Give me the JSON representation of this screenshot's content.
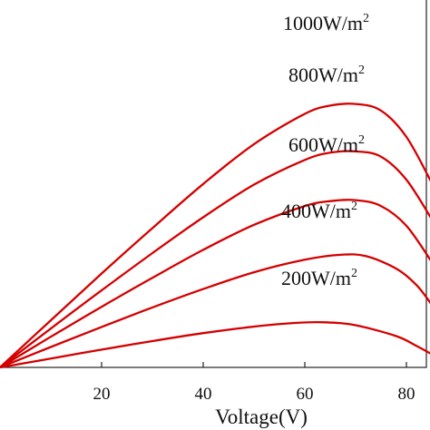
{
  "chart_data": {
    "type": "line",
    "title": "",
    "xlabel": "Voltage(V)",
    "ylabel": "",
    "xlim": [
      0,
      85
    ],
    "x_ticks": [
      20,
      40,
      60,
      80
    ],
    "grid": false,
    "legend": "none",
    "curve_color": "#d40000",
    "series": [
      {
        "label": "1000W/m",
        "exp": "2",
        "values": [
          [
            0,
            0
          ],
          [
            10,
            0.143
          ],
          [
            20,
            0.285
          ],
          [
            30,
            0.423
          ],
          [
            40,
            0.557
          ],
          [
            50,
            0.678
          ],
          [
            60,
            0.77
          ],
          [
            65,
            0.795
          ],
          [
            70,
            0.8
          ],
          [
            75,
            0.78
          ],
          [
            80,
            0.7
          ],
          [
            85,
            0.56
          ]
        ]
      },
      {
        "label": "800W/m",
        "exp": "2",
        "values": [
          [
            0,
            0
          ],
          [
            10,
            0.118
          ],
          [
            20,
            0.234
          ],
          [
            30,
            0.347
          ],
          [
            40,
            0.456
          ],
          [
            50,
            0.555
          ],
          [
            60,
            0.63
          ],
          [
            65,
            0.652
          ],
          [
            70,
            0.656
          ],
          [
            75,
            0.64
          ],
          [
            80,
            0.57
          ],
          [
            85,
            0.45
          ]
        ]
      },
      {
        "label": "600W/m",
        "exp": "2",
        "values": [
          [
            0,
            0
          ],
          [
            10,
            0.093
          ],
          [
            20,
            0.184
          ],
          [
            30,
            0.272
          ],
          [
            40,
            0.357
          ],
          [
            50,
            0.433
          ],
          [
            60,
            0.49
          ],
          [
            65,
            0.505
          ],
          [
            70,
            0.508
          ],
          [
            75,
            0.49
          ],
          [
            80,
            0.43
          ],
          [
            85,
            0.32
          ]
        ]
      },
      {
        "label": "400W/m",
        "exp": "2",
        "values": [
          [
            0,
            0
          ],
          [
            10,
            0.062
          ],
          [
            20,
            0.123
          ],
          [
            30,
            0.182
          ],
          [
            40,
            0.238
          ],
          [
            50,
            0.289
          ],
          [
            60,
            0.327
          ],
          [
            67,
            0.342
          ],
          [
            72,
            0.338
          ],
          [
            78,
            0.3
          ],
          [
            82,
            0.25
          ],
          [
            85,
            0.19
          ]
        ]
      },
      {
        "label": "200W/m",
        "exp": "2",
        "values": [
          [
            0,
            0
          ],
          [
            10,
            0.027
          ],
          [
            20,
            0.054
          ],
          [
            30,
            0.08
          ],
          [
            40,
            0.104
          ],
          [
            50,
            0.124
          ],
          [
            58,
            0.135
          ],
          [
            64,
            0.137
          ],
          [
            70,
            0.128
          ],
          [
            78,
            0.095
          ],
          [
            82,
            0.065
          ],
          [
            85,
            0.04
          ]
        ]
      }
    ]
  }
}
